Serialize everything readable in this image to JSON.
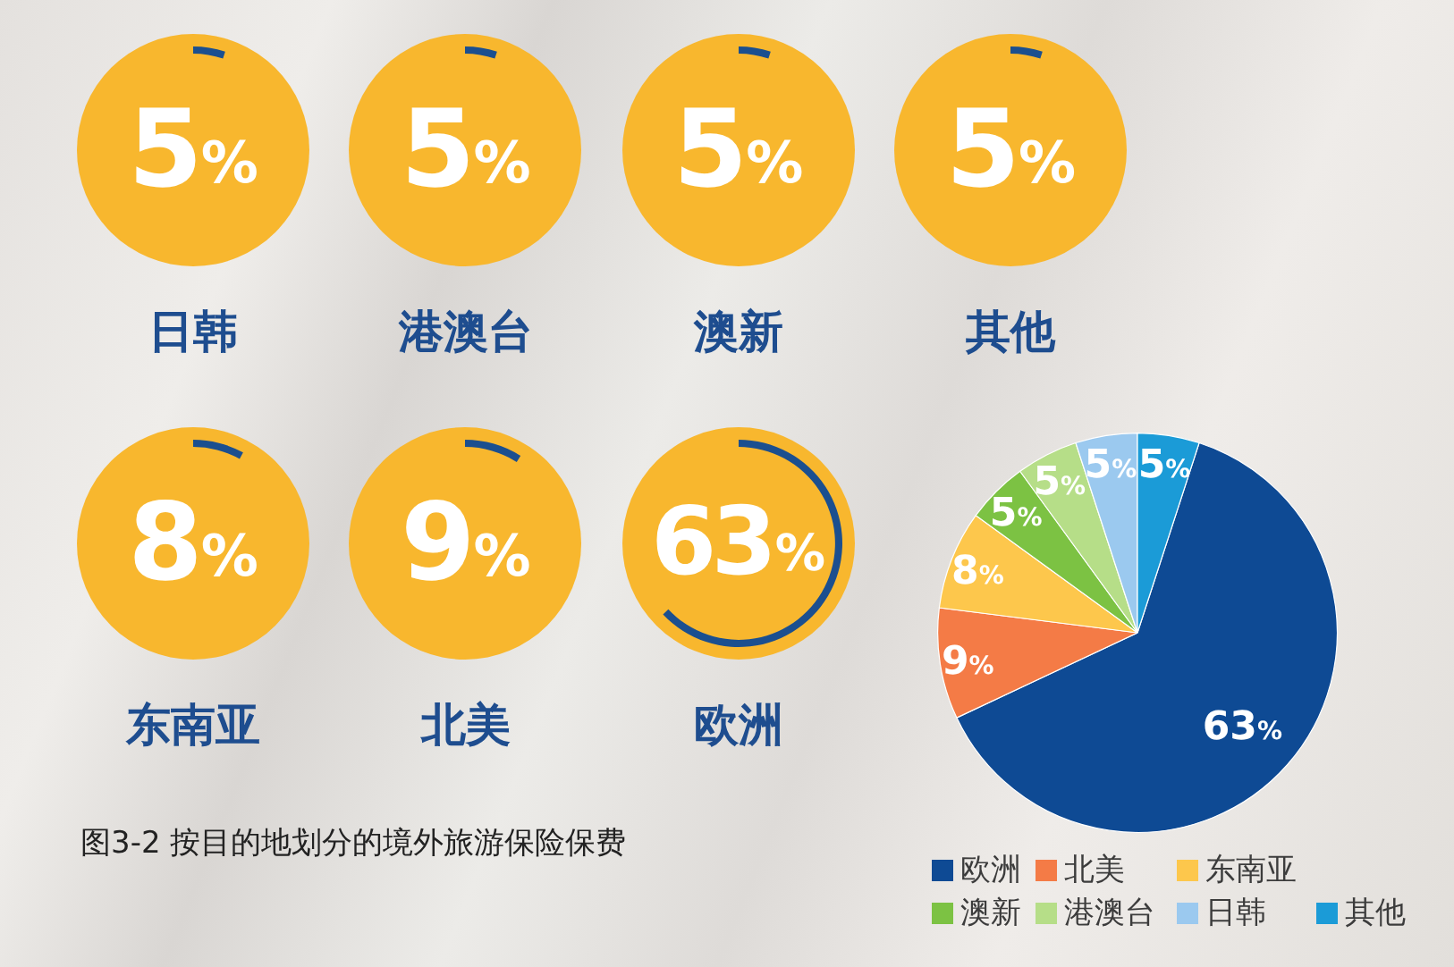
{
  "chart_data": [
    {
      "type": "other",
      "title": "图3-2 按目的地划分的境外旅游保险保费",
      "categories": [
        "日韩",
        "港澳台",
        "澳新",
        "其他",
        "东南亚",
        "北美",
        "欧洲"
      ],
      "values": [
        5,
        5,
        5,
        5,
        8,
        9,
        63
      ],
      "value_labels": [
        "5%",
        "5%",
        "5%",
        "5%",
        "8%",
        "9%",
        "63%"
      ],
      "color": "#f8b72e"
    },
    {
      "type": "pie",
      "categories": [
        "欧洲",
        "北美",
        "东南亚",
        "澳新",
        "港澳台",
        "日韩",
        "其他"
      ],
      "values": [
        63,
        9,
        8,
        5,
        5,
        5,
        5
      ],
      "value_labels": [
        "63%",
        "9%",
        "8%",
        "5%",
        "5%",
        "5%",
        "5%"
      ],
      "colors": [
        "#0e4a94",
        "#f47b46",
        "#fdc74c",
        "#7cc243",
        "#b6de88",
        "#9bc9ef",
        "#1b9bd7"
      ],
      "legend": "bottom"
    }
  ]
}
